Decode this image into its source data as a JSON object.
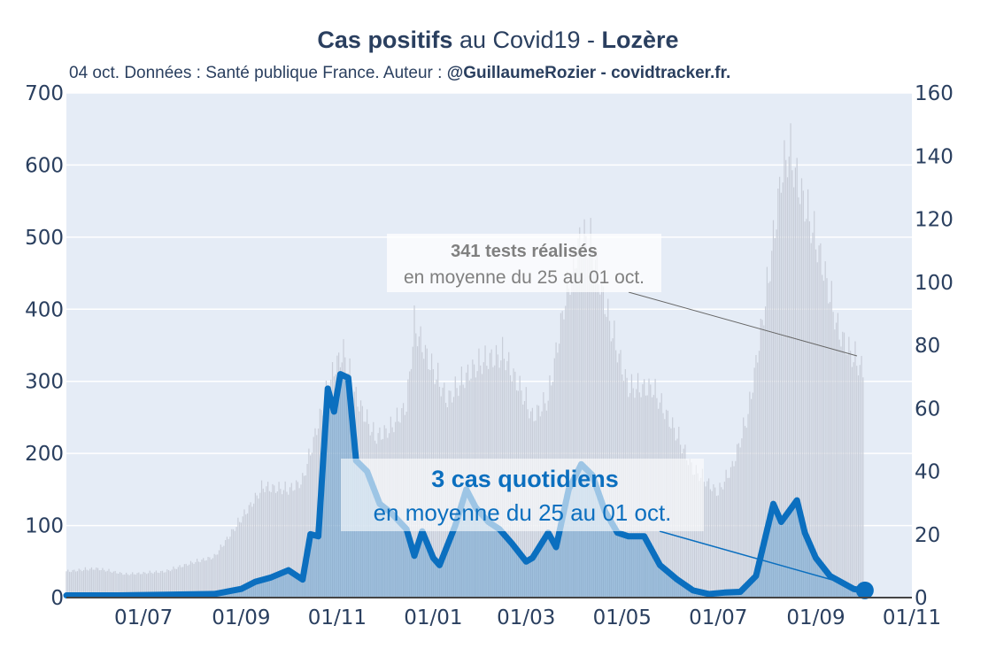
{
  "header": {
    "title_bold1": "Cas positifs",
    "title_mid": " au Covid19 - ",
    "title_bold2": "Lozère",
    "subtitle_prefix": "04 oct. Données : Santé publique France. Auteur : ",
    "subtitle_author": "@GuillaumeRozier - covidtracker.fr."
  },
  "chart_data": {
    "type": "area",
    "title": "Cas positifs au Covid19 - Lozère",
    "x_axis": {
      "ticks": [
        "01/07",
        "01/09",
        "01/11",
        "01/01",
        "01/03",
        "01/05",
        "01/07",
        "01/09",
        "01/11"
      ],
      "range": [
        "2020-05-13",
        "2021-11-01"
      ]
    },
    "y_left": {
      "ticks": [
        "0",
        "100",
        "200",
        "300",
        "400",
        "500",
        "600",
        "700"
      ],
      "range": [
        0,
        700
      ]
    },
    "y_right": {
      "ticks": [
        "0",
        "20",
        "40",
        "60",
        "80",
        "100",
        "120",
        "140",
        "160"
      ],
      "range": [
        0,
        160
      ]
    },
    "series": [
      {
        "axis": "right",
        "color": "#c8cdd8",
        "points": [
          [
            "2020-05-13",
            9
          ],
          [
            "2020-06-01",
            10
          ],
          [
            "2020-06-20",
            8
          ],
          [
            "2020-07-15",
            9
          ],
          [
            "2020-08-01",
            12
          ],
          [
            "2020-08-15",
            14
          ],
          [
            "2020-09-01",
            27
          ],
          [
            "2020-09-15",
            38
          ],
          [
            "2020-10-01",
            37
          ],
          [
            "2020-10-10",
            40
          ],
          [
            "2020-10-20",
            60
          ],
          [
            "2020-10-31",
            80
          ],
          [
            "2020-11-05",
            84
          ],
          [
            "2020-11-12",
            70
          ],
          [
            "2020-11-25",
            55
          ],
          [
            "2020-12-05",
            58
          ],
          [
            "2020-12-15",
            66
          ],
          [
            "2020-12-20",
            93
          ],
          [
            "2021-01-01",
            78
          ],
          [
            "2021-01-10",
            68
          ],
          [
            "2021-01-25",
            78
          ],
          [
            "2021-02-05",
            82
          ],
          [
            "2021-02-15",
            83
          ],
          [
            "2021-02-25",
            72
          ],
          [
            "2021-03-05",
            62
          ],
          [
            "2021-03-15",
            68
          ],
          [
            "2021-03-25",
            100
          ],
          [
            "2021-04-05",
            125
          ],
          [
            "2021-04-12",
            120
          ],
          [
            "2021-04-25",
            90
          ],
          [
            "2021-05-05",
            72
          ],
          [
            "2021-05-20",
            72
          ],
          [
            "2021-06-01",
            60
          ],
          [
            "2021-06-15",
            44
          ],
          [
            "2021-07-01",
            36
          ],
          [
            "2021-07-10",
            45
          ],
          [
            "2021-07-20",
            63
          ],
          [
            "2021-08-01",
            105
          ],
          [
            "2021-08-10",
            145
          ],
          [
            "2021-08-15",
            153
          ],
          [
            "2021-08-25",
            135
          ],
          [
            "2021-09-05",
            115
          ],
          [
            "2021-09-15",
            92
          ],
          [
            "2021-09-25",
            82
          ],
          [
            "2021-10-01",
            78
          ]
        ]
      },
      {
        "axis": "left",
        "color": "#0b6fbf",
        "points": [
          [
            "2020-05-13",
            3
          ],
          [
            "2020-06-15",
            3
          ],
          [
            "2020-07-15",
            4
          ],
          [
            "2020-08-15",
            5
          ],
          [
            "2020-09-01",
            12
          ],
          [
            "2020-09-10",
            22
          ],
          [
            "2020-09-20",
            28
          ],
          [
            "2020-10-01",
            38
          ],
          [
            "2020-10-10",
            25
          ],
          [
            "2020-10-15",
            88
          ],
          [
            "2020-10-20",
            85
          ],
          [
            "2020-10-26",
            290
          ],
          [
            "2020-10-30",
            258
          ],
          [
            "2020-11-03",
            310
          ],
          [
            "2020-11-08",
            305
          ],
          [
            "2020-11-13",
            190
          ],
          [
            "2020-11-20",
            175
          ],
          [
            "2020-11-28",
            130
          ],
          [
            "2020-12-05",
            118
          ],
          [
            "2020-12-15",
            95
          ],
          [
            "2020-12-20",
            58
          ],
          [
            "2020-12-25",
            92
          ],
          [
            "2021-01-01",
            55
          ],
          [
            "2021-01-05",
            45
          ],
          [
            "2021-01-15",
            100
          ],
          [
            "2021-01-22",
            150
          ],
          [
            "2021-01-28",
            125
          ],
          [
            "2021-02-05",
            105
          ],
          [
            "2021-02-12",
            95
          ],
          [
            "2021-02-20",
            75
          ],
          [
            "2021-03-01",
            50
          ],
          [
            "2021-03-05",
            55
          ],
          [
            "2021-03-15",
            90
          ],
          [
            "2021-03-20",
            70
          ],
          [
            "2021-03-28",
            150
          ],
          [
            "2021-04-05",
            185
          ],
          [
            "2021-04-12",
            170
          ],
          [
            "2021-04-20",
            120
          ],
          [
            "2021-04-28",
            90
          ],
          [
            "2021-05-05",
            85
          ],
          [
            "2021-05-15",
            85
          ],
          [
            "2021-05-25",
            45
          ],
          [
            "2021-06-05",
            25
          ],
          [
            "2021-06-15",
            10
          ],
          [
            "2021-06-25",
            5
          ],
          [
            "2021-07-05",
            7
          ],
          [
            "2021-07-15",
            8
          ],
          [
            "2021-07-25",
            30
          ],
          [
            "2021-08-05",
            130
          ],
          [
            "2021-08-10",
            105
          ],
          [
            "2021-08-15",
            120
          ],
          [
            "2021-08-20",
            135
          ],
          [
            "2021-08-25",
            90
          ],
          [
            "2021-09-01",
            55
          ],
          [
            "2021-09-10",
            30
          ],
          [
            "2021-09-20",
            18
          ],
          [
            "2021-09-25",
            12
          ],
          [
            "2021-10-01",
            10
          ]
        ]
      }
    ],
    "annotations": [
      {
        "bold": "341 tests réalisés",
        "text": "en moyenne du 25 au 01 oct.",
        "color": "#808080"
      },
      {
        "bold": "3 cas quotidiens",
        "text": "en moyenne du 25 au 01 oct.",
        "color": "#0b6fbf"
      }
    ],
    "plot_background": "#e5ecf6",
    "grid": true
  }
}
